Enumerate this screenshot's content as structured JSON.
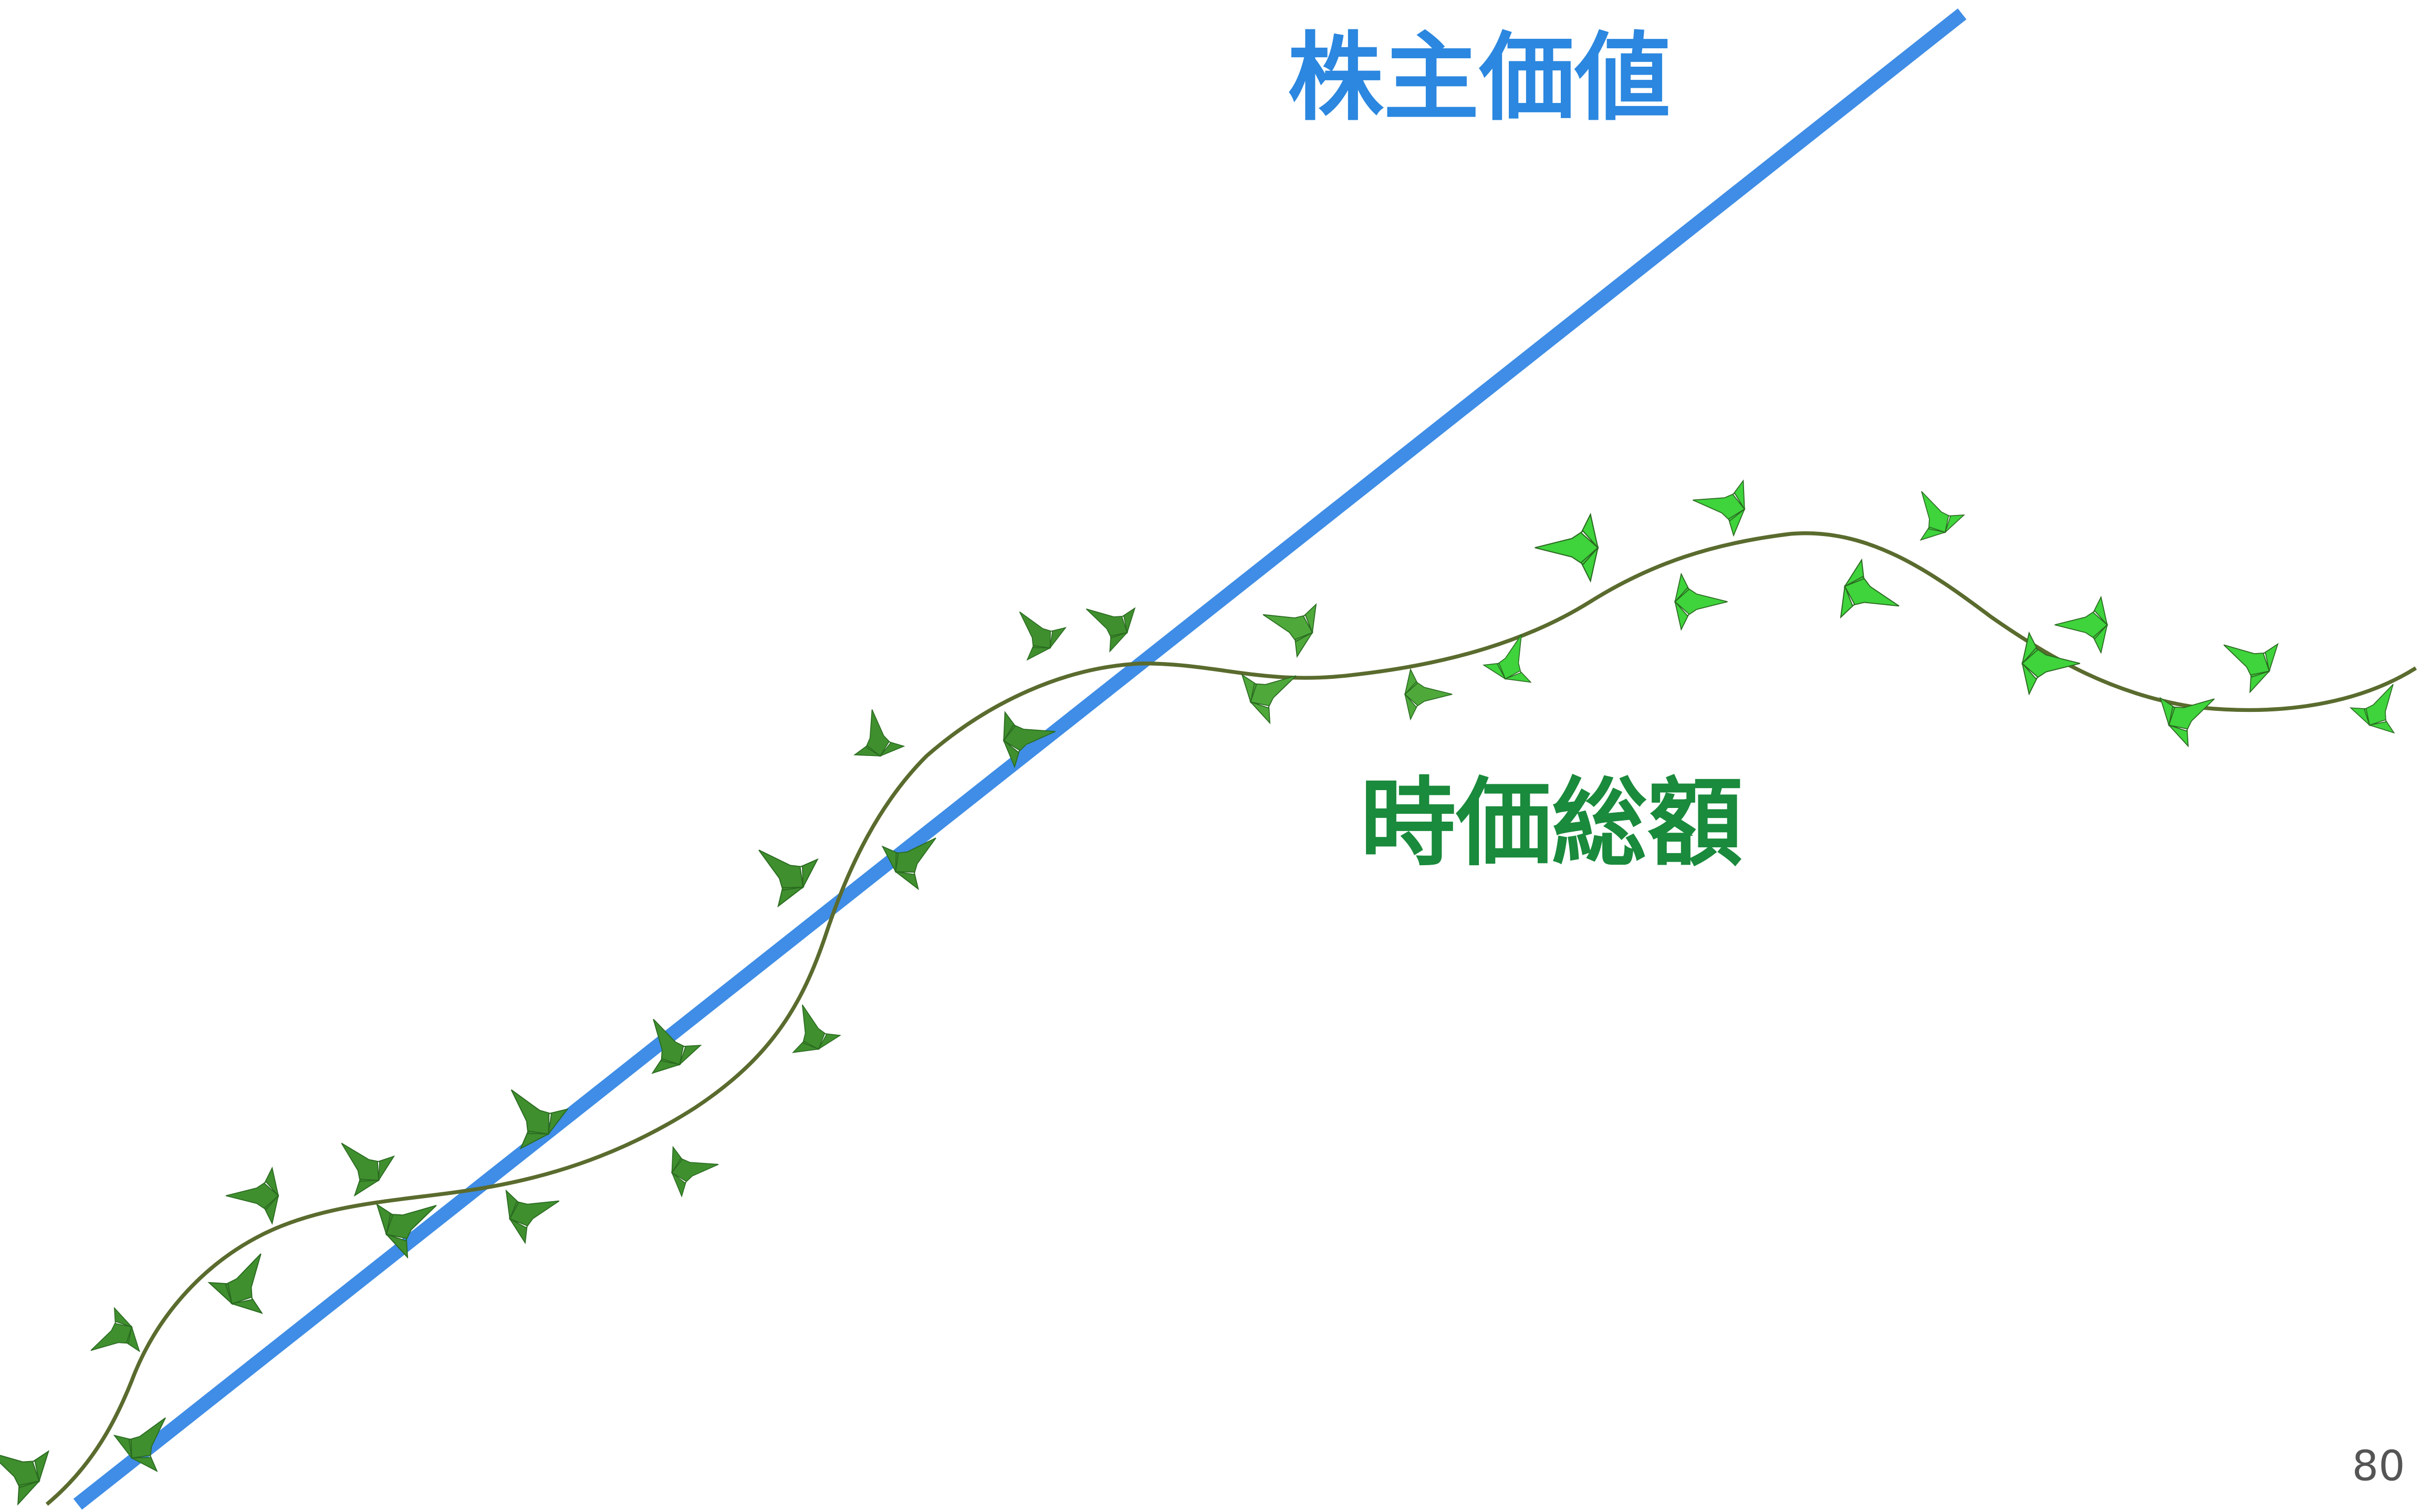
{
  "slide": {
    "title": "株主価値",
    "label": "時価総額",
    "page_number": "80"
  }
}
